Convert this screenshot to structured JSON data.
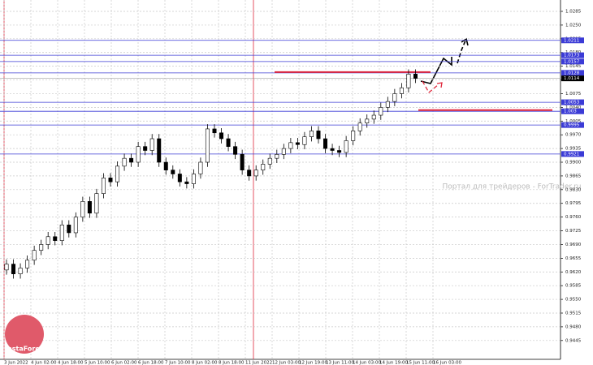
{
  "chart_data": {
    "type": "candlestick",
    "watermark": "Портал для трейдеров - ForTrader.ru",
    "brand": "InstaForex",
    "x_labels": [
      "3 Jun 2022",
      "4 Jun 02:00",
      "4 Jun 18:00",
      "5 Jun 10:00",
      "6 Jun 02:00",
      "6 Jun 18:00",
      "7 Jun 10:00",
      "8 Jun 02:00",
      "8 Jun 18:00",
      "11 Jun 2022",
      "12 Jun 03:00",
      "12 Jun 19:00",
      "13 Jun 11:00",
      "14 Jun 03:00",
      "14 Jun 19:00",
      "15 Jun 11:00",
      "16 Jun 03:00"
    ],
    "open": [
      0.9625,
      0.964,
      0.9615,
      0.963,
      0.965,
      0.9675,
      0.969,
      0.971,
      0.97,
      0.974,
      0.972,
      0.976,
      0.98,
      0.977,
      0.982,
      0.986,
      0.985,
      0.989,
      0.991,
      0.99,
      0.994,
      0.993,
      0.996,
      0.99,
      0.988,
      0.987,
      0.985,
      0.9845,
      0.987,
      0.99,
      0.9985,
      0.9975,
      0.996,
      0.994,
      0.992,
      0.988,
      0.9865,
      0.988,
      0.9895,
      0.991,
      0.992,
      0.9935,
      0.995,
      0.9945,
      0.9965,
      0.998,
      0.996,
      0.9935,
      0.993,
      0.9925,
      0.9955,
      0.998,
      1.0,
      1.001,
      1.002,
      1.004,
      1.0055,
      1.0075,
      1.009,
      1.0125
    ],
    "high": [
      0.9652,
      0.9652,
      0.9642,
      0.9662,
      0.9687,
      0.9702,
      0.9722,
      0.9722,
      0.9752,
      0.9752,
      0.9772,
      0.9812,
      0.9812,
      0.9832,
      0.9872,
      0.9872,
      0.9902,
      0.9922,
      0.9922,
      0.9952,
      0.9952,
      0.9972,
      0.9972,
      0.9912,
      0.9892,
      0.9882,
      0.9862,
      0.9882,
      0.9912,
      0.9997,
      0.9997,
      0.9987,
      0.9972,
      0.9952,
      0.9932,
      0.9892,
      0.9892,
      0.9907,
      0.9922,
      0.9932,
      0.9947,
      0.9962,
      0.9962,
      0.9977,
      0.9992,
      0.9992,
      0.9972,
      0.9947,
      0.9942,
      0.9967,
      0.9992,
      1.0012,
      1.0022,
      1.0032,
      1.0052,
      1.0067,
      1.0087,
      1.0102,
      1.0137,
      1.0137
    ],
    "low": [
      0.9613,
      0.9603,
      0.9603,
      0.9618,
      0.9638,
      0.9663,
      0.9678,
      0.9688,
      0.9688,
      0.9708,
      0.9708,
      0.9748,
      0.9758,
      0.9758,
      0.9808,
      0.9838,
      0.9838,
      0.9878,
      0.9888,
      0.9888,
      0.9918,
      0.9918,
      0.9888,
      0.9868,
      0.9858,
      0.9838,
      0.9833,
      0.9833,
      0.9858,
      0.9888,
      0.9963,
      0.9948,
      0.9928,
      0.9908,
      0.9868,
      0.9853,
      0.9853,
      0.9868,
      0.9883,
      0.9898,
      0.9908,
      0.9923,
      0.9933,
      0.9933,
      0.9953,
      0.9948,
      0.9923,
      0.9918,
      0.9913,
      0.9913,
      0.9943,
      0.9968,
      0.9988,
      0.9998,
      1.0008,
      1.0028,
      1.0043,
      1.0063,
      1.0078,
      1.0102
    ],
    "close": [
      0.964,
      0.9615,
      0.963,
      0.965,
      0.9675,
      0.969,
      0.971,
      0.97,
      0.974,
      0.972,
      0.976,
      0.98,
      0.977,
      0.982,
      0.986,
      0.985,
      0.989,
      0.991,
      0.99,
      0.994,
      0.993,
      0.996,
      0.99,
      0.988,
      0.987,
      0.985,
      0.9845,
      0.987,
      0.99,
      0.9985,
      0.9975,
      0.996,
      0.994,
      0.992,
      0.988,
      0.9865,
      0.988,
      0.9895,
      0.991,
      0.992,
      0.9935,
      0.995,
      0.9945,
      0.9965,
      0.998,
      0.996,
      0.9935,
      0.993,
      0.9925,
      0.9955,
      0.998,
      1.0,
      1.001,
      1.002,
      1.004,
      1.0055,
      1.0075,
      1.009,
      1.0125,
      1.0114
    ],
    "ylim": [
      0.9397,
      1.0314
    ],
    "yticks": [
      0.9445,
      {
        "value": 0.948,
        "label": "0.9480"
      },
      0.9515,
      {
        "value": 0.955,
        "label": "0.9550"
      },
      0.9585,
      {
        "value": 0.962,
        "label": "0.9620"
      },
      0.9655,
      {
        "value": 0.969,
        "label": "0.9690"
      },
      0.9725,
      {
        "value": 0.976,
        "label": "0.9760"
      },
      0.9795,
      {
        "value": 0.983,
        "label": "0.9830"
      },
      0.9865,
      {
        "value": 0.99,
        "label": "0.9900"
      },
      0.9935,
      {
        "value": 0.997,
        "label": "0.9970"
      },
      1.0005,
      {
        "value": 1.004,
        "label": "1.0040"
      },
      1.0075,
      {
        "value": 1.011,
        "label": "1.0110"
      },
      1.0145,
      {
        "value": 1.018,
        "label": "1.0180"
      },
      1.0215,
      {
        "value": 1.025,
        "label": "1.0250"
      },
      1.0285
    ],
    "grid": true,
    "levels": [
      1.0211,
      1.0173,
      1.0157,
      1.0128,
      0.9995,
      1.0053,
      1.003,
      0.9921
    ],
    "level_color": "#3b3bd6",
    "current_price": 1.0114,
    "red_levels": [
      1.013,
      1.0033
    ],
    "red_color": "#e0283c"
  }
}
